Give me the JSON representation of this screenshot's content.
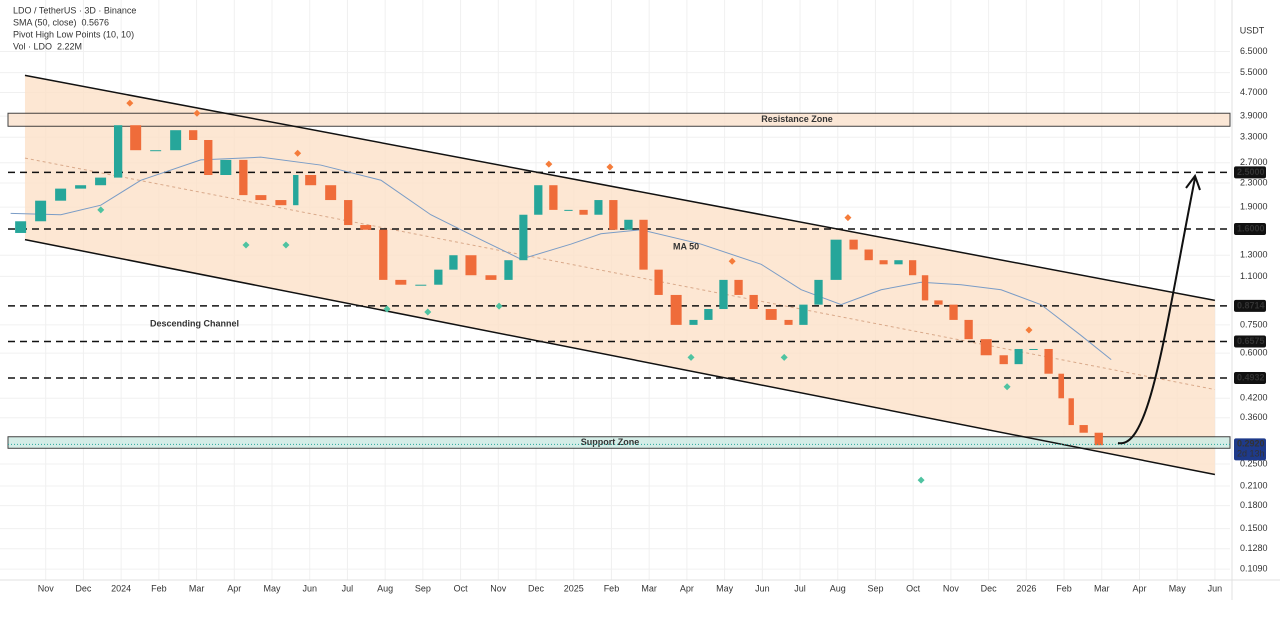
{
  "chart_data": {
    "type": "candlestick",
    "title": "LDO / TetherUS · 3D · Binance",
    "legend": [
      {
        "label": "SMA (50, close)",
        "value": 0.5676,
        "color": "#2196f3"
      },
      {
        "label": "Pivot High Low Points (10, 10)"
      },
      {
        "label": "Vol · LDO",
        "value": "2.22M",
        "color": "#f57c3a"
      }
    ],
    "unit": "USDT",
    "log_y": true,
    "grid": true,
    "up_color": "#26a69a",
    "down_color": "#ef6c3a",
    "xlim": [
      -1,
      31.4
    ],
    "xticks": [
      {
        "value": 0,
        "label": "Nov"
      },
      {
        "value": 1,
        "label": "Dec"
      },
      {
        "value": 2,
        "label": "2024"
      },
      {
        "value": 3,
        "label": "Feb"
      },
      {
        "value": 4,
        "label": "Mar"
      },
      {
        "value": 5,
        "label": "Apr"
      },
      {
        "value": 6,
        "label": "May"
      },
      {
        "value": 7,
        "label": "Jun"
      },
      {
        "value": 8,
        "label": "Jul"
      },
      {
        "value": 9,
        "label": "Aug"
      },
      {
        "value": 10,
        "label": "Sep"
      },
      {
        "value": 11,
        "label": "Oct"
      },
      {
        "value": 12,
        "label": "Nov"
      },
      {
        "value": 13,
        "label": "Dec"
      },
      {
        "value": 14,
        "label": "2025"
      },
      {
        "value": 15,
        "label": "Feb"
      },
      {
        "value": 16,
        "label": "Mar"
      },
      {
        "value": 17,
        "label": "Apr"
      },
      {
        "value": 18,
        "label": "May"
      },
      {
        "value": 19,
        "label": "Jun"
      },
      {
        "value": 20,
        "label": "Jul"
      },
      {
        "value": 21,
        "label": "Aug"
      },
      {
        "value": 22,
        "label": "Sep"
      },
      {
        "value": 23,
        "label": "Oct"
      },
      {
        "value": 24,
        "label": "Nov"
      },
      {
        "value": 25,
        "label": "Dec"
      },
      {
        "value": 26,
        "label": "2026"
      },
      {
        "value": 27,
        "label": "Feb"
      },
      {
        "value": 28,
        "label": "Mar"
      },
      {
        "value": 29,
        "label": "Apr"
      },
      {
        "value": 30,
        "label": "May"
      },
      {
        "value": 31,
        "label": "Jun"
      }
    ],
    "ylim": [
      0.1,
      7.7
    ],
    "yticks": [
      {
        "value": 6.5,
        "label": "6.5000"
      },
      {
        "value": 5.5,
        "label": "5.5000"
      },
      {
        "value": 4.7,
        "label": "4.7000"
      },
      {
        "value": 3.9,
        "label": "3.9000"
      },
      {
        "value": 3.3,
        "label": "3.3000"
      },
      {
        "value": 2.7,
        "label": "2.7000"
      },
      {
        "value": 2.3,
        "label": "2.3000"
      },
      {
        "value": 1.9,
        "label": "1.9000"
      },
      {
        "value": 1.3,
        "label": "1.3000"
      },
      {
        "value": 1.1,
        "label": "1.1000"
      },
      {
        "value": 0.75,
        "label": "0.7500"
      },
      {
        "value": 0.6,
        "label": "0.6000"
      },
      {
        "value": 0.42,
        "label": "0.4200"
      },
      {
        "value": 0.36,
        "label": "0.3600"
      },
      {
        "value": 0.25,
        "label": "0.2500"
      },
      {
        "value": 0.21,
        "label": "0.2100"
      },
      {
        "value": 0.18,
        "label": "0.1800"
      },
      {
        "value": 0.15,
        "label": "0.1500"
      },
      {
        "value": 0.128,
        "label": "0.1280"
      },
      {
        "value": 0.109,
        "label": "0.1090"
      }
    ],
    "x": [
      -0.93,
      -0.4,
      0.13,
      0.66,
      1.19,
      1.72,
      2.12,
      2.65,
      3.18,
      3.71,
      4.11,
      4.51,
      5.04,
      5.44,
      5.97,
      6.5,
      6.76,
      7.29,
      7.82,
      8.22,
      8.75,
      9.15,
      9.68,
      10.21,
      10.61,
      11.01,
      11.54,
      12.07,
      12.47,
      12.86,
      13.26,
      13.66,
      14.06,
      14.46,
      14.85,
      15.25,
      15.65,
      16.05,
      16.45,
      16.98,
      17.37,
      17.77,
      18.17,
      18.57,
      18.97,
      19.5,
      19.89,
      20.29,
      20.69,
      21.22,
      21.62,
      22.02,
      22.41,
      22.81,
      23.16,
      23.47,
      23.87,
      24.27,
      24.67,
      25.2,
      25.6,
      25.99,
      26.39,
      26.79,
      27.06,
      27.32,
      27.72,
      28.12
    ],
    "values": [
      1.55,
      1.7,
      2.0,
      2.2,
      2.26,
      2.4,
      3.63,
      2.98,
      2.98,
      3.49,
      3.23,
      2.45,
      2.76,
      2.09,
      2.01,
      1.93,
      2.45,
      2.26,
      2.01,
      1.65,
      1.59,
      1.07,
      1.03,
      1.03,
      1.16,
      1.3,
      1.11,
      1.07,
      1.25,
      1.79,
      2.26,
      1.86,
      1.86,
      1.79,
      2.01,
      1.59,
      1.72,
      1.16,
      0.95,
      0.75,
      0.78,
      0.85,
      1.07,
      0.95,
      0.85,
      0.78,
      0.75,
      0.88,
      1.07,
      1.47,
      1.36,
      1.25,
      1.21,
      1.25,
      1.11,
      0.91,
      0.88,
      0.78,
      0.67,
      0.59,
      0.55,
      0.62,
      0.62,
      0.51,
      0.42,
      0.34,
      0.32,
      0.29
    ],
    "ma": {
      "name": "MA 50",
      "color": "#7a9cc6",
      "x": [
        -0.93,
        0.4,
        1.46,
        2.52,
        4.11,
        5.7,
        7.29,
        8.89,
        10.21,
        11.54,
        12.6,
        13.93,
        14.72,
        15.78,
        17.37,
        18.97,
        20.03,
        21.09,
        22.15,
        23.21,
        24.27,
        25.33,
        26.39,
        27.45,
        28.25
      ],
      "values": [
        1.81,
        1.79,
        1.93,
        2.35,
        2.76,
        2.82,
        2.65,
        2.35,
        1.79,
        1.47,
        1.26,
        1.42,
        1.54,
        1.59,
        1.42,
        1.21,
        0.99,
        0.88,
        0.99,
        1.05,
        1.03,
        0.99,
        0.88,
        0.69,
        0.57
      ]
    },
    "levels": [
      {
        "value": 2.5,
        "label": "2.5000"
      },
      {
        "value": 1.6,
        "label": "1.6000"
      },
      {
        "value": 0.8714,
        "label": "0.8714"
      },
      {
        "value": 0.6575,
        "label": "0.6575"
      },
      {
        "value": 0.4932,
        "label": "0.4932"
      }
    ],
    "current": {
      "value": 0.292,
      "label": "0.2920",
      "countdown": "2d 13h"
    },
    "zones": [
      {
        "name": "Resistance Zone",
        "range": [
          3.6,
          3.99
        ],
        "color": "#fbe3cf"
      },
      {
        "name": "Support Zone",
        "range": [
          0.283,
          0.31
        ],
        "color": "#cdebe3"
      }
    ],
    "channel": {
      "name": "Descending Channel",
      "color": "#fde1c8",
      "upper": {
        "x": [
          -0.55,
          31.0
        ],
        "values": [
          5.38,
          0.91
        ]
      },
      "lower": {
        "x": [
          -0.55,
          31.0
        ],
        "values": [
          1.47,
          0.23
        ]
      },
      "middle": {
        "x": [
          -0.55,
          31.0
        ],
        "values": [
          2.8,
          0.45
        ]
      }
    },
    "pivot_highs": {
      "color": "#f57c3a",
      "x": [
        2.23,
        4.01,
        6.68,
        13.34,
        14.96,
        18.2,
        21.27,
        26.07
      ],
      "values": [
        4.32,
        3.99,
        2.91,
        2.67,
        2.61,
        1.24,
        1.75,
        0.72
      ]
    },
    "pivot_lows": {
      "color": "#4fc3a1",
      "x": [
        1.46,
        5.31,
        6.37,
        9.05,
        10.13,
        12.02,
        17.11,
        19.58,
        25.49,
        23.21
      ],
      "values": [
        1.86,
        1.41,
        1.41,
        0.85,
        0.83,
        0.87,
        0.58,
        0.58,
        0.46,
        0.22
      ]
    }
  }
}
